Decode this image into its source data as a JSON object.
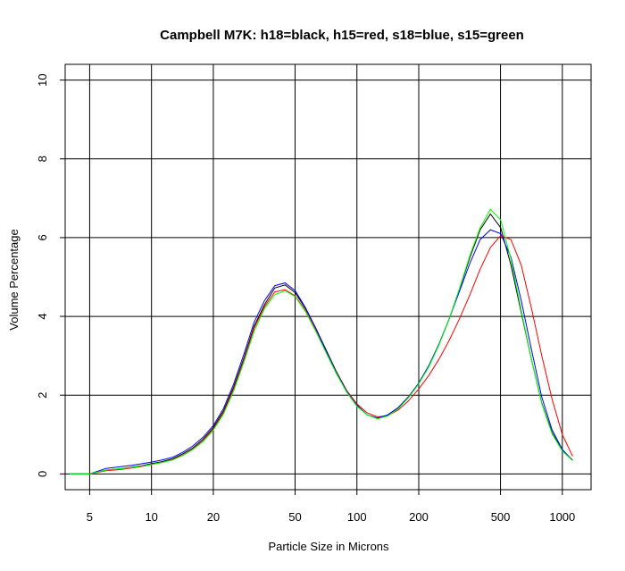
{
  "chart_data": {
    "type": "line",
    "title": "Campbell M7K: h18=black, h15=red, s18=blue, s15=green",
    "xlabel": "Particle Size in Microns",
    "ylabel": "Volume Percentage",
    "x_scale": "log",
    "xlim": [
      3.8,
      1380
    ],
    "ylim": [
      -0.4,
      10.4
    ],
    "x_ticks": [
      5,
      10,
      20,
      50,
      100,
      200,
      500,
      1000
    ],
    "x_tick_labels": [
      "5",
      "10",
      "20",
      "50",
      "100",
      "200",
      "500",
      "1000"
    ],
    "y_ticks": [
      0,
      2,
      4,
      6,
      8,
      10
    ],
    "y_tick_labels": [
      "0",
      "2",
      "4",
      "6",
      "8",
      "10"
    ],
    "grid": true,
    "x": [
      4.0,
      5.0,
      6.0,
      7.0,
      8.0,
      9.0,
      10.0,
      11.2,
      12.6,
      14.1,
      15.8,
      17.8,
      20.0,
      22.4,
      25.1,
      28.2,
      31.6,
      35.5,
      39.8,
      44.7,
      50.1,
      56.2,
      63.1,
      70.8,
      79.4,
      89.1,
      100.0,
      112.2,
      125.9,
      141.3,
      158.5,
      177.8,
      199.5,
      223.9,
      251.2,
      281.8,
      316.2,
      354.8,
      398.1,
      446.7,
      501.2,
      562.3,
      631.0,
      707.9,
      794.3,
      891.3,
      1000.0,
      1122.0
    ],
    "series": [
      {
        "color": "#000000",
        "values": [
          0.0,
          0.0,
          0.1,
          0.13,
          0.17,
          0.21,
          0.26,
          0.31,
          0.38,
          0.5,
          0.65,
          0.88,
          1.18,
          1.6,
          2.2,
          2.95,
          3.75,
          4.3,
          4.72,
          4.8,
          4.6,
          4.2,
          3.7,
          3.15,
          2.6,
          2.12,
          1.75,
          1.5,
          1.42,
          1.5,
          1.68,
          1.95,
          2.3,
          2.75,
          3.3,
          3.95,
          4.7,
          5.5,
          6.2,
          6.6,
          6.25,
          5.3,
          4.1,
          2.9,
          1.8,
          1.05,
          0.6,
          0.35
        ]
      },
      {
        "color": "#ff0000",
        "values": [
          0.0,
          0.0,
          0.08,
          0.11,
          0.15,
          0.19,
          0.24,
          0.29,
          0.36,
          0.47,
          0.62,
          0.84,
          1.14,
          1.56,
          2.15,
          2.9,
          3.7,
          4.25,
          4.62,
          4.68,
          4.52,
          4.15,
          3.65,
          3.12,
          2.58,
          2.12,
          1.78,
          1.55,
          1.45,
          1.48,
          1.62,
          1.85,
          2.15,
          2.5,
          2.92,
          3.4,
          3.95,
          4.55,
          5.2,
          5.75,
          6.05,
          5.95,
          5.3,
          4.2,
          3.0,
          1.9,
          1.0,
          0.45
        ]
      },
      {
        "color": "#0000ff",
        "values": [
          0.0,
          0.0,
          0.14,
          0.18,
          0.22,
          0.26,
          0.3,
          0.35,
          0.42,
          0.54,
          0.7,
          0.93,
          1.23,
          1.66,
          2.28,
          3.05,
          3.85,
          4.4,
          4.78,
          4.85,
          4.65,
          4.22,
          3.7,
          3.12,
          2.57,
          2.1,
          1.74,
          1.5,
          1.42,
          1.5,
          1.68,
          1.95,
          2.3,
          2.75,
          3.3,
          3.95,
          4.65,
          5.35,
          5.95,
          6.2,
          6.1,
          5.5,
          4.4,
          3.15,
          1.95,
          1.12,
          0.62,
          0.34
        ]
      },
      {
        "color": "#00ff00",
        "values": [
          0.0,
          0.0,
          0.1,
          0.13,
          0.16,
          0.2,
          0.24,
          0.29,
          0.35,
          0.46,
          0.61,
          0.82,
          1.11,
          1.52,
          2.1,
          2.85,
          3.62,
          4.2,
          4.55,
          4.65,
          4.5,
          4.12,
          3.62,
          3.08,
          2.55,
          2.08,
          1.72,
          1.5,
          1.4,
          1.47,
          1.65,
          1.93,
          2.28,
          2.72,
          3.28,
          3.95,
          4.72,
          5.55,
          6.25,
          6.72,
          6.45,
          5.45,
          4.15,
          2.9,
          1.78,
          1.02,
          0.58,
          0.34
        ]
      }
    ]
  }
}
